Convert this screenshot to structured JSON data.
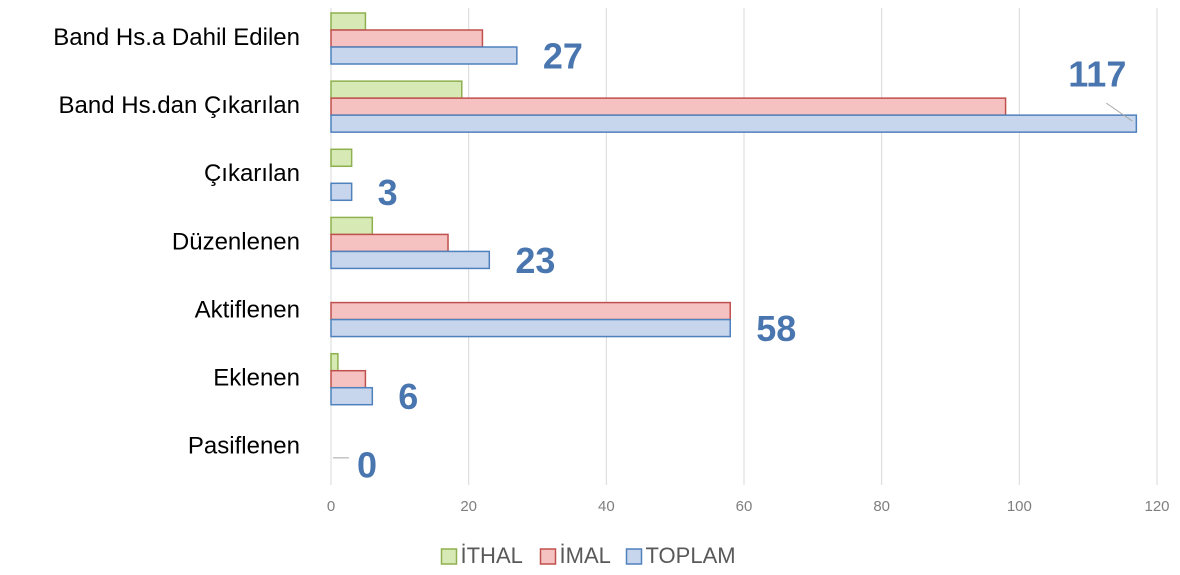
{
  "chart_data": {
    "type": "hbar",
    "categories": [
      "Band Hs.a Dahil Edilen",
      "Band Hs.dan Çıkarılan",
      "Çıkarılan",
      "Düzenlenen",
      "Aktiflenen",
      "Eklenen",
      "Pasiflenen"
    ],
    "series": [
      {
        "name": "İTHAL",
        "color": "#d7e9b5",
        "values": [
          5,
          19,
          3,
          6,
          0,
          1,
          0
        ]
      },
      {
        "name": "İMAL",
        "color": "#f6c2c1",
        "values": [
          22,
          98,
          0,
          17,
          58,
          5,
          0
        ]
      },
      {
        "name": "TOPLAM",
        "color": "#c7d6ec",
        "values": [
          27,
          117,
          3,
          23,
          58,
          6,
          0
        ],
        "data_labels": true
      }
    ],
    "xlim": [
      0,
      120
    ],
    "xticks": [
      0,
      20,
      40,
      60,
      80,
      100,
      120
    ],
    "grid": true,
    "legend": "bottom"
  }
}
